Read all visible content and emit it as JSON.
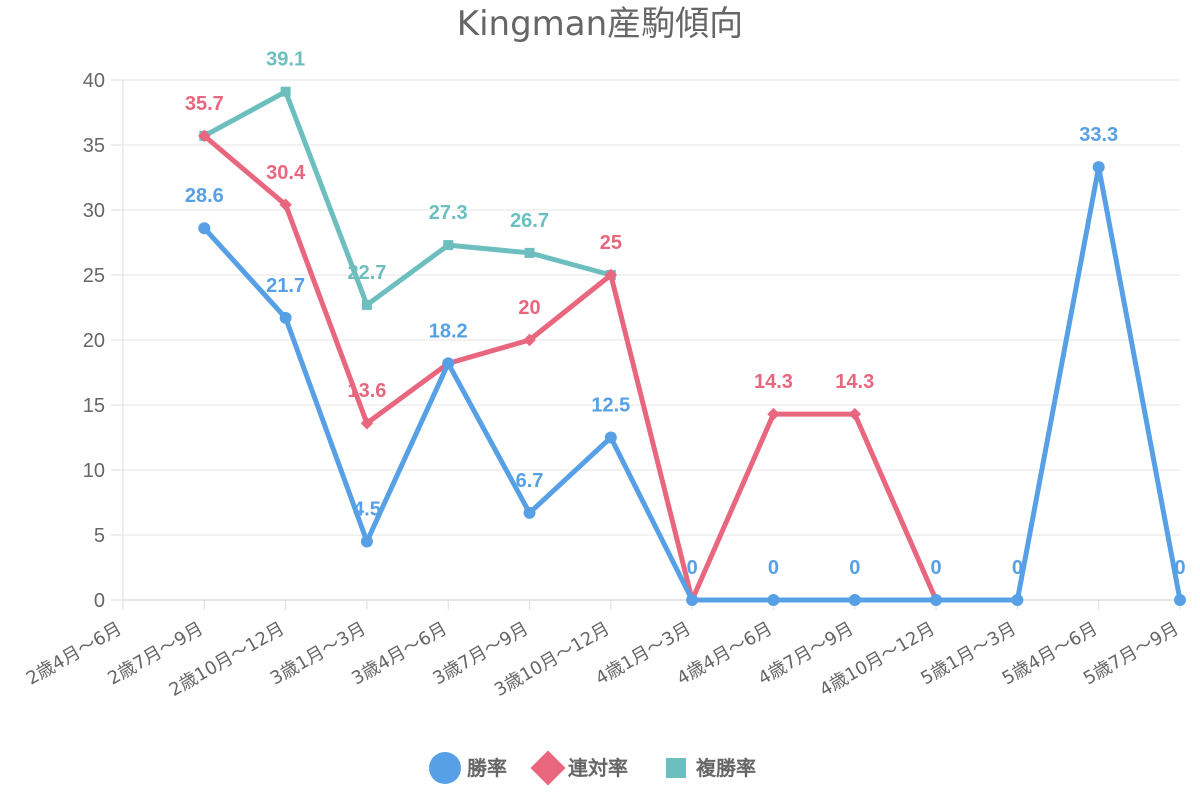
{
  "chart_data": {
    "type": "line",
    "title": "Kingman産駒傾向",
    "categories": [
      "2歳4月～6月",
      "2歳7月～9月",
      "2歳10月～12月",
      "3歳1月～3月",
      "3歳4月～6月",
      "3歳7月～9月",
      "3歳10月～12月",
      "4歳1月～3月",
      "4歳4月～6月",
      "4歳7月～9月",
      "4歳10月～12月",
      "5歳1月～3月",
      "5歳4月～6月",
      "5歳7月～9月"
    ],
    "yticks": [
      "0",
      "5",
      "10",
      "15",
      "20",
      "25",
      "30",
      "35",
      "40"
    ],
    "ylim": [
      0,
      40
    ],
    "grid": true,
    "legend_position": "bottom",
    "series": [
      {
        "name": "複勝率",
        "color": "#6dbfbf",
        "marker": "square",
        "values": [
          null,
          35.7,
          39.1,
          22.7,
          27.3,
          26.7,
          25,
          null,
          null,
          null,
          null,
          null,
          null,
          null
        ],
        "labels": [
          null,
          "",
          "39.1",
          "22.7",
          "27.3",
          "26.7",
          "",
          null,
          null,
          null,
          null,
          null,
          null,
          null
        ]
      },
      {
        "name": "連対率",
        "color": "#e8677f",
        "marker": "diamond",
        "values": [
          null,
          35.7,
          30.4,
          13.6,
          18.2,
          20,
          25,
          0,
          14.3,
          14.3,
          0,
          null,
          null,
          null
        ],
        "labels": [
          null,
          "35.7",
          "30.4",
          "13.6",
          "",
          "20",
          "25",
          "",
          "14.3",
          "14.3",
          "",
          null,
          null,
          null
        ]
      },
      {
        "name": "勝率",
        "color": "#57a0e5",
        "marker": "circle",
        "values": [
          null,
          28.6,
          21.7,
          4.5,
          18.2,
          6.7,
          12.5,
          0,
          0,
          0,
          0,
          0,
          33.3,
          0
        ],
        "labels": [
          null,
          "28.6",
          "21.7",
          "4.5",
          "18.2",
          "6.7",
          "12.5",
          "0",
          "0",
          "0",
          "0",
          "0",
          "33.3",
          "0"
        ]
      }
    ],
    "legend": [
      {
        "name": "勝率",
        "color": "#57a0e5",
        "marker": "circle"
      },
      {
        "name": "連対率",
        "color": "#e8677f",
        "marker": "diamond"
      },
      {
        "name": "複勝率",
        "color": "#6dbfbf",
        "marker": "square"
      }
    ]
  }
}
